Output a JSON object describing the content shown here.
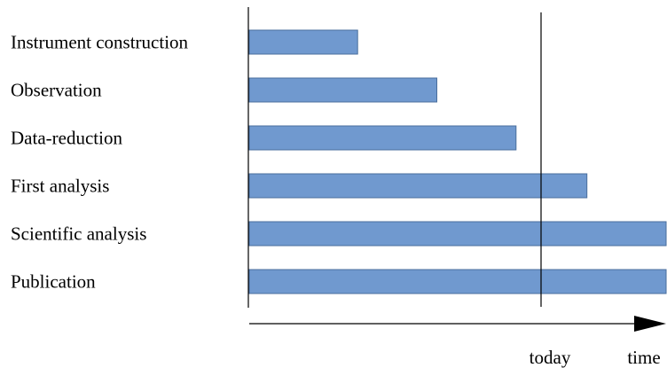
{
  "chart_data": {
    "type": "bar",
    "orientation": "horizontal",
    "categories": [
      "Instrument construction",
      "Observation",
      "Data-reduction",
      "First analysis",
      "Scientific analysis",
      "Publication"
    ],
    "series": [
      {
        "start": [
          0,
          0,
          0,
          0,
          0,
          0
        ],
        "end": [
          26,
          45,
          64,
          81,
          100,
          100
        ]
      }
    ],
    "xlim": [
      0,
      100
    ],
    "markers": [
      {
        "label": "today",
        "x": 70
      }
    ],
    "axis_arrow_label": "time",
    "grid": false,
    "legend": "none",
    "colors": {
      "bar": "#7099cf",
      "bar_border": "#4a6e9c",
      "line": "#000000"
    }
  }
}
